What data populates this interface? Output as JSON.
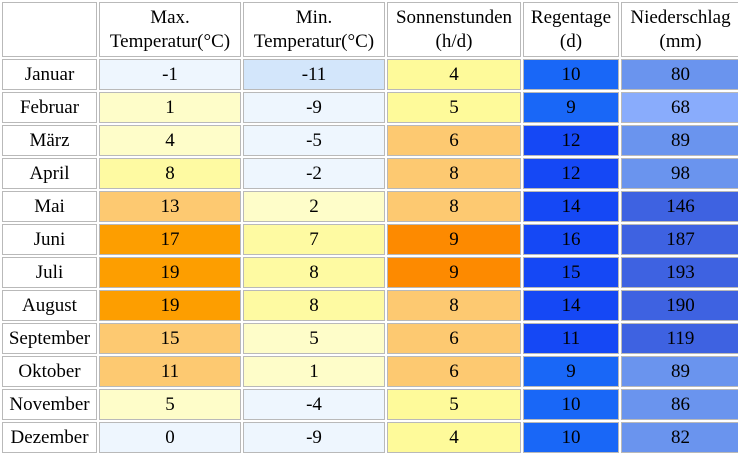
{
  "headers": {
    "corner": "",
    "max_temp": [
      "Max.",
      "Temperatur(°C)"
    ],
    "min_temp": [
      "Min.",
      "Temperatur(°C)"
    ],
    "sun": [
      "Sonnenstunden",
      "(h/d)"
    ],
    "rain_days": [
      "Regentage",
      "(d)"
    ],
    "precip": [
      "Niederschlag",
      "(mm)"
    ]
  },
  "colors": {
    "maxmin": {
      "-11": "#d3e6fb",
      "-9": "#eef6fe",
      "-5": "#eef6fe",
      "-4": "#eef6fe",
      "-2": "#eef6fe",
      "-1": "#eef6fe",
      "0": "#eef6fe",
      "1": "#fefdc9",
      "2": "#fefdc9",
      "4": "#fefdc9",
      "5": "#fefdc9",
      "7": "#fefaa2",
      "8": "#fefaa2",
      "11": "#fdc971",
      "13": "#fdc971",
      "15": "#fdc971",
      "17": "#fd9e00",
      "19": "#fd9e00"
    },
    "sun": {
      "4": "#fefa9a",
      "5": "#fefa9a",
      "6": "#fdc971",
      "8": "#fdc971",
      "9": "#fd8a00"
    },
    "rain_days": {
      "9": "#1967f7",
      "10": "#1967f7",
      "11": "#1548f5",
      "12": "#1548f5",
      "14": "#1548f5",
      "15": "#1548f5",
      "16": "#1548f5"
    },
    "precip": {
      "68": "#89acfc",
      "80": "#6a94ee",
      "82": "#6a94ee",
      "86": "#6a94ee",
      "89": "#6a94ee",
      "98": "#6a94ee",
      "119": "#3e62e1",
      "146": "#3e62e1",
      "187": "#3e62e1",
      "190": "#3e62e1",
      "193": "#3e62e1"
    }
  },
  "rows": [
    {
      "month": "Januar",
      "max": "-1",
      "min": "-11",
      "sun": "4",
      "rain_days": "10",
      "precip": "80"
    },
    {
      "month": "Februar",
      "max": "1",
      "min": "-9",
      "sun": "5",
      "rain_days": "9",
      "precip": "68"
    },
    {
      "month": "März",
      "max": "4",
      "min": "-5",
      "sun": "6",
      "rain_days": "12",
      "precip": "89"
    },
    {
      "month": "April",
      "max": "8",
      "min": "-2",
      "sun": "8",
      "rain_days": "12",
      "precip": "98"
    },
    {
      "month": "Mai",
      "max": "13",
      "min": "2",
      "sun": "8",
      "rain_days": "14",
      "precip": "146"
    },
    {
      "month": "Juni",
      "max": "17",
      "min": "7",
      "sun": "9",
      "rain_days": "16",
      "precip": "187"
    },
    {
      "month": "Juli",
      "max": "19",
      "min": "8",
      "sun": "9",
      "rain_days": "15",
      "precip": "193"
    },
    {
      "month": "August",
      "max": "19",
      "min": "8",
      "sun": "8",
      "rain_days": "14",
      "precip": "190"
    },
    {
      "month": "September",
      "max": "15",
      "min": "5",
      "sun": "6",
      "rain_days": "11",
      "precip": "119"
    },
    {
      "month": "Oktober",
      "max": "11",
      "min": "1",
      "sun": "6",
      "rain_days": "9",
      "precip": "89"
    },
    {
      "month": "November",
      "max": "5",
      "min": "-4",
      "sun": "5",
      "rain_days": "10",
      "precip": "86"
    },
    {
      "month": "Dezember",
      "max": "0",
      "min": "-9",
      "sun": "4",
      "rain_days": "10",
      "precip": "82"
    }
  ]
}
